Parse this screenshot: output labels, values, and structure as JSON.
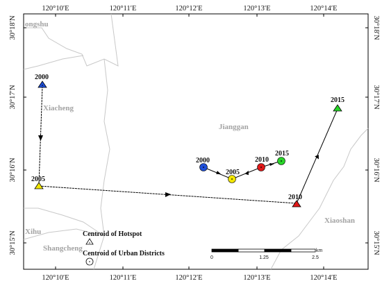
{
  "top_ticks": [
    "120°10′E",
    "120°11′E",
    "120°12′E",
    "120°13′E",
    "120°14′E"
  ],
  "bottom_ticks": [
    "120°10′E",
    "120°11′E",
    "120°12′E",
    "120°13′E",
    "120°14′E"
  ],
  "left_ticks": [
    "30°18′N",
    "30°17′N",
    "30°16′N",
    "30°15′N"
  ],
  "right_ticks": [
    "30°18′N",
    "30°17′N",
    "30°16′N",
    "30°15′N"
  ],
  "regions": {
    "gongshu": "ongshu",
    "xiacheng": "Xiacheng",
    "jianggan": "Jianggan",
    "xihu": "Xihu",
    "shangcheng": "Shangcheng",
    "xiaoshan": "Xiaoshan"
  },
  "hotspot_years": [
    "2000",
    "2005",
    "2010",
    "2015"
  ],
  "urban_years": [
    "2000",
    "2005",
    "2010",
    "2015"
  ],
  "colors": {
    "2000": "#1f4fd8",
    "2005": "#f2e600",
    "2010": "#e01818",
    "2015": "#28d428",
    "boundary": "#c8c8c8",
    "frame": "#000000"
  },
  "legend": {
    "hotspot": "Centroid of Hotspot",
    "urban": "Centroid of Urban Districts"
  },
  "scalebar": {
    "labels": [
      "0",
      "1.25",
      "2.5"
    ],
    "unit": "km"
  }
}
